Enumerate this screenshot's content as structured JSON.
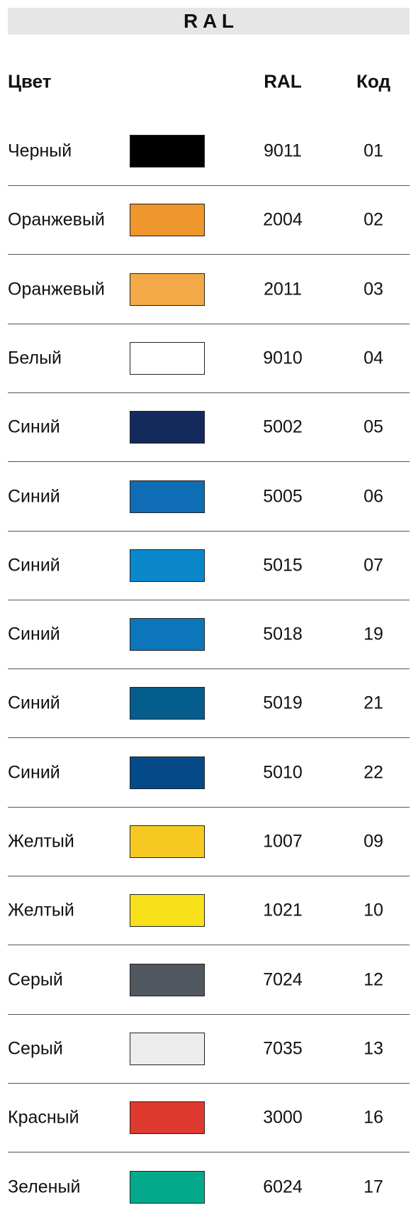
{
  "header": {
    "title": "R A L",
    "columns": [
      "Цвет",
      "RAL",
      "Код"
    ]
  },
  "rows": [
    {
      "name": "Черный",
      "color": "#000000",
      "ral": "9011",
      "code": "01"
    },
    {
      "name": "Оранжевый",
      "color": "#ef962d",
      "ral": "2004",
      "code": "02"
    },
    {
      "name": "Оранжевый",
      "color": "#f3a947",
      "ral": "2011",
      "code": "03"
    },
    {
      "name": "Белый",
      "color": "#ffffff",
      "ral": "9010",
      "code": "04"
    },
    {
      "name": "Синий",
      "color": "#142a5c",
      "ral": "5002",
      "code": "05"
    },
    {
      "name": "Синий",
      "color": "#0f6db5",
      "ral": "5005",
      "code": "06"
    },
    {
      "name": "Синий",
      "color": "#0a87cb",
      "ral": "5015",
      "code": "07"
    },
    {
      "name": "Синий",
      "color": "#0c76ba",
      "ral": "5018",
      "code": "19"
    },
    {
      "name": "Синий",
      "color": "#045d8c",
      "ral": "5019",
      "code": "21"
    },
    {
      "name": "Синий",
      "color": "#044a88",
      "ral": "5010",
      "code": "22"
    },
    {
      "name": "Желтый",
      "color": "#f5c922",
      "ral": "1007",
      "code": "09"
    },
    {
      "name": "Желтый",
      "color": "#f8e11b",
      "ral": "1021",
      "code": "10"
    },
    {
      "name": "Серый",
      "color": "#50575e",
      "ral": "7024",
      "code": "12"
    },
    {
      "name": "Серый",
      "color": "#ececec",
      "ral": "7035",
      "code": "13"
    },
    {
      "name": "Красный",
      "color": "#de3a2f",
      "ral": "3000",
      "code": "16"
    },
    {
      "name": "Зеленый",
      "color": "#03a98a",
      "ral": "6024",
      "code": "17"
    }
  ]
}
